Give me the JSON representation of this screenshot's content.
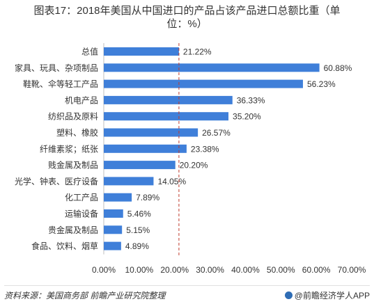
{
  "title_line1": "图表17：2018年美国从中国进口的产品占该产品进口总额比重（单",
  "title_line2": "位：%）",
  "footer": {
    "source": "资料来源：美国商务部 前瞻产业研究院整理",
    "brand": "@前瞻经济学人APP"
  },
  "colors": {
    "bar": "#3f7fd9",
    "reference_line": "#c0392b"
  },
  "chart_data": {
    "type": "bar",
    "orientation": "horizontal",
    "title": "图表17：2018年美国从中国进口的产品占该产品进口总额比重（单位：%）",
    "categories": [
      "总值",
      "家具、玩具、杂项制品",
      "鞋靴、伞等轻工产品",
      "机电产品",
      "纺织品及原料",
      "塑料、橡胶",
      "纤维素浆；纸张",
      "贱金属及制品",
      "光学、钟表、医疗设备",
      "化工产品",
      "运输设备",
      "贵金属及制品",
      "食品、饮料、烟草"
    ],
    "values": [
      21.22,
      60.88,
      56.23,
      36.33,
      35.2,
      26.57,
      23.38,
      20.2,
      14.05,
      7.89,
      5.46,
      5.15,
      4.89
    ],
    "value_labels": [
      "21.22%",
      "60.88%",
      "56.23%",
      "36.33%",
      "35.20%",
      "26.57%",
      "23.38%",
      "20.20%",
      "14.05%",
      "7.89%",
      "5.46%",
      "5.15%",
      "4.89%"
    ],
    "xlim": [
      0,
      70
    ],
    "x_ticks": [
      "0.00%",
      "10.00%",
      "20.00%",
      "30.00%",
      "40.00%",
      "50.00%",
      "60.00%",
      "70.00%"
    ],
    "reference_line_value": 21.22,
    "grid": false,
    "legend": "none"
  }
}
